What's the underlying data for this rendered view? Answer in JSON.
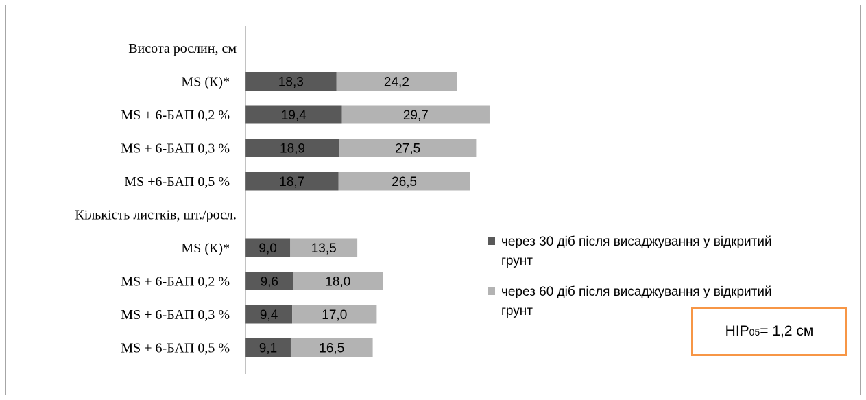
{
  "chart_data": {
    "type": "bar",
    "orientation": "horizontal",
    "stacked": true,
    "groups": [
      {
        "title": "Висота рослин, см",
        "categories": [
          "MS  (К)*",
          "MS  + 6-БАП 0,2 %",
          "MS  + 6-БАП 0,3 %",
          "MS  +6-БАП 0,5 %"
        ],
        "series": [
          {
            "name": "через 30 діб після висаджування у відкритий грунт",
            "values": [
              18.3,
              19.4,
              18.9,
              18.7
            ],
            "labels": [
              "18,3",
              "19,4",
              "18,9",
              "18,7"
            ]
          },
          {
            "name": "через 60 діб після висаджування у відкритий грунт",
            "values": [
              24.2,
              29.7,
              27.5,
              26.5
            ],
            "labels": [
              "24,2",
              "29,7",
              "27,5",
              "26,5"
            ]
          }
        ]
      },
      {
        "title": "Кількість листків, шт./росл.",
        "categories": [
          "MS  (К)*",
          "MS  + 6-БАП 0,2 %",
          "MS  + 6-БАП 0,3 %",
          "MS  + 6-БАП 0,5 %"
        ],
        "series": [
          {
            "name": "через 30 діб після висаджування у відкритий грунт",
            "values": [
              9.0,
              9.6,
              9.4,
              9.1
            ],
            "labels": [
              "9,0",
              "9,6",
              "9,4",
              "9,1"
            ]
          },
          {
            "name": "через 60 діб після висаджування у відкритий грунт",
            "values": [
              13.5,
              18.0,
              17.0,
              16.5
            ],
            "labels": [
              "13,5",
              "18,0",
              "17,0",
              "16,5"
            ]
          }
        ]
      }
    ],
    "legend": {
      "position": "right",
      "items": [
        {
          "lines": [
            "через 30 діб після висаджування у відкритий",
            "грунт"
          ]
        },
        {
          "lines": [
            "через 60 діб після висаджування у відкритий",
            "грунт"
          ]
        }
      ]
    },
    "colors": [
      "#595959",
      "#b3b3b3"
    ],
    "grid": false
  },
  "annotation": {
    "prefix": "НІР",
    "subscript": "05",
    "suffix": " = 1,2 см"
  }
}
